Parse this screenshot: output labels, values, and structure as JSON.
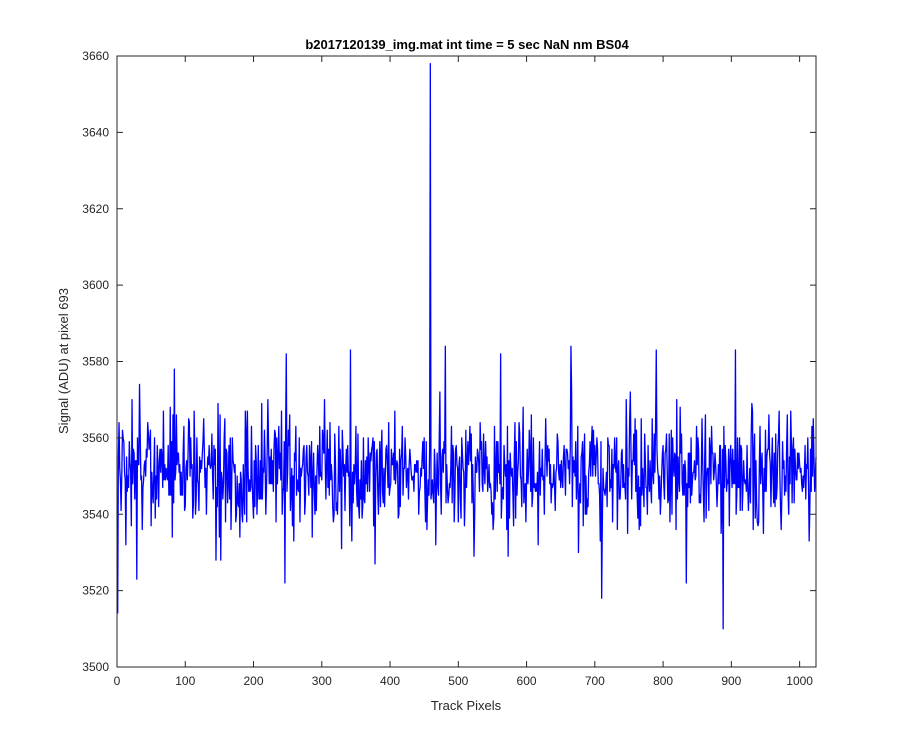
{
  "chart_data": {
    "type": "line",
    "title": "b2017120139_img.mat int time = 5 sec  NaN nm BS04",
    "xlabel": "Track Pixels",
    "ylabel": "Signal (ADU) at pixel 693",
    "xlim": [
      0,
      1024
    ],
    "ylim": [
      3500,
      3660
    ],
    "xticks": [
      0,
      100,
      200,
      300,
      400,
      500,
      600,
      700,
      800,
      900,
      1000
    ],
    "yticks": [
      3500,
      3520,
      3540,
      3560,
      3580,
      3600,
      3620,
      3640,
      3660
    ],
    "grid": false,
    "legend": "none",
    "line_color": "#0000ff",
    "series": [
      {
        "x_range": [
          1,
          1024
        ],
        "baseline_mean": 3551,
        "noise_sd": 7.5,
        "approx_n_points": 1024,
        "notable_points": [
          {
            "x": 1,
            "y": 3514
          },
          {
            "x": 3,
            "y": 3564
          },
          {
            "x": 29,
            "y": 3523
          },
          {
            "x": 33,
            "y": 3574
          },
          {
            "x": 84,
            "y": 3578
          },
          {
            "x": 145,
            "y": 3528
          },
          {
            "x": 152,
            "y": 3528
          },
          {
            "x": 246,
            "y": 3522
          },
          {
            "x": 248,
            "y": 3582
          },
          {
            "x": 342,
            "y": 3583
          },
          {
            "x": 378,
            "y": 3527
          },
          {
            "x": 454,
            "y": 3536
          },
          {
            "x": 459,
            "y": 3658
          },
          {
            "x": 461,
            "y": 3546
          },
          {
            "x": 481,
            "y": 3584
          },
          {
            "x": 523,
            "y": 3529
          },
          {
            "x": 562,
            "y": 3582
          },
          {
            "x": 665,
            "y": 3584
          },
          {
            "x": 710,
            "y": 3518
          },
          {
            "x": 790,
            "y": 3583
          },
          {
            "x": 834,
            "y": 3522
          },
          {
            "x": 888,
            "y": 3510
          },
          {
            "x": 906,
            "y": 3583
          },
          {
            "x": 1014,
            "y": 3533
          },
          {
            "x": 1024,
            "y": 3555
          }
        ]
      }
    ]
  }
}
